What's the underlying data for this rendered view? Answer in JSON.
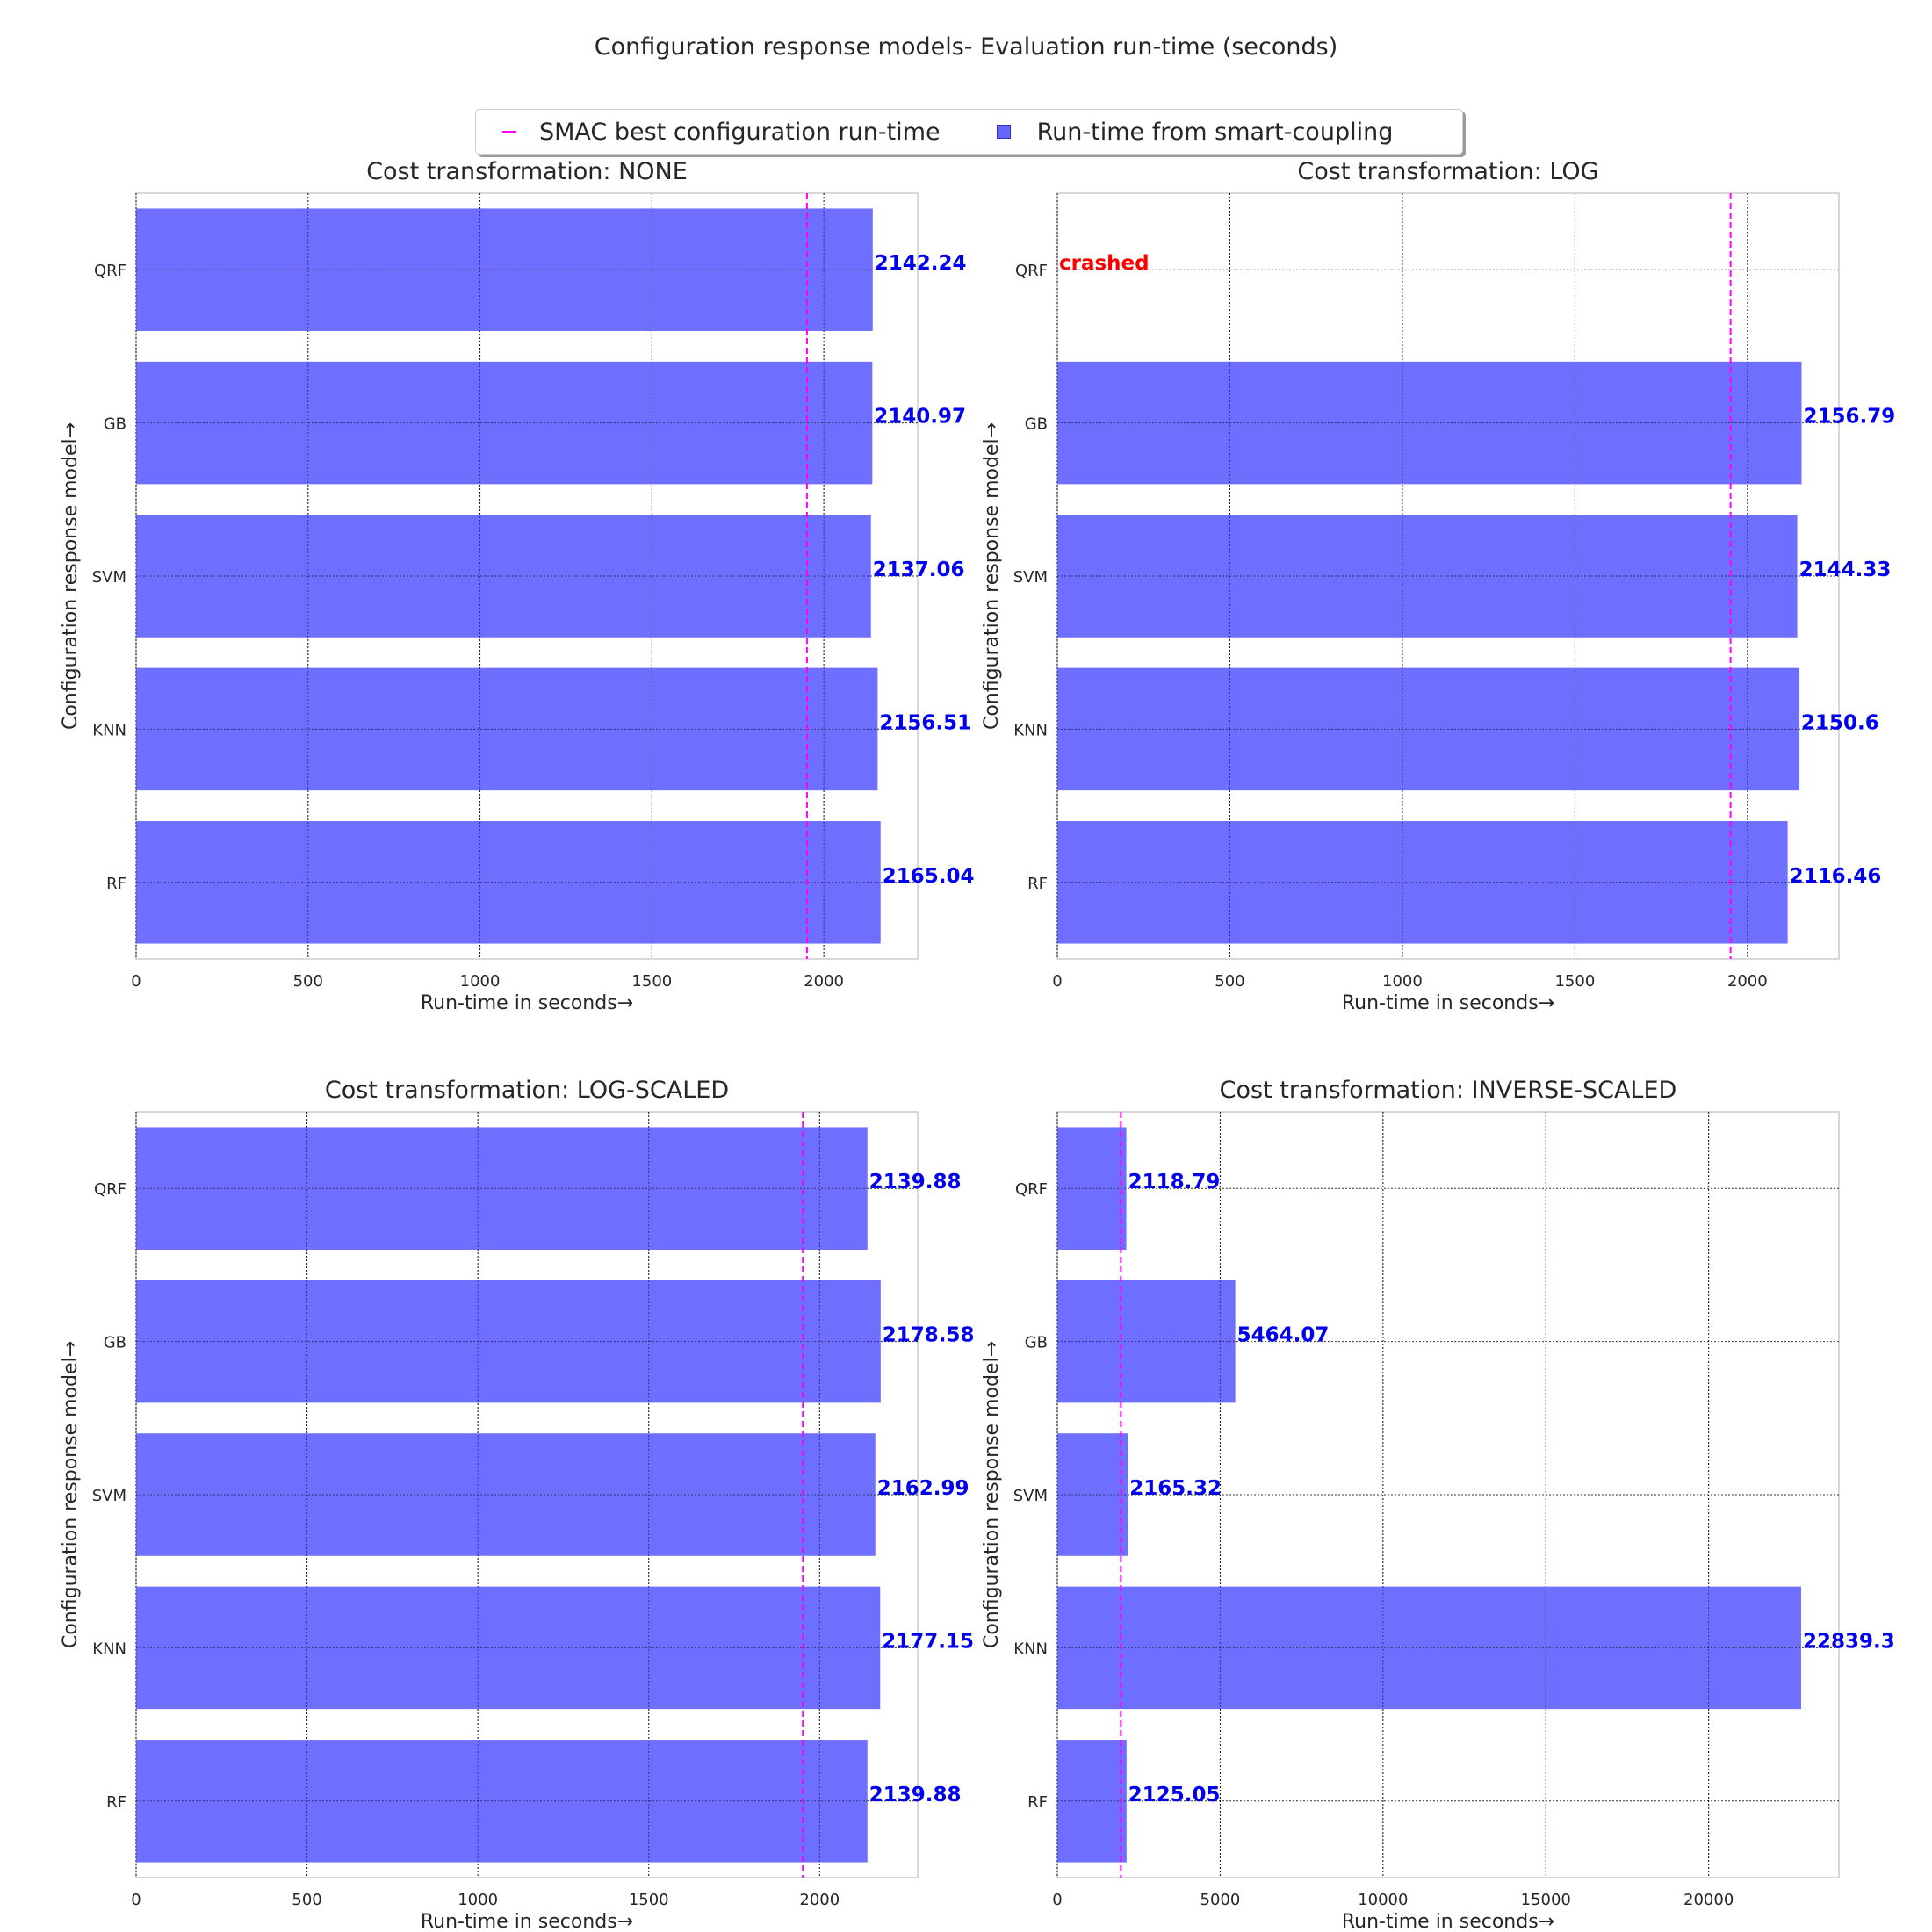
{
  "figure": {
    "title": "Configuration response models- Evaluation run-time (seconds)",
    "legend": {
      "line_label": "SMAC best configuration run-time",
      "bar_label": "Run-time from smart-coupling",
      "line_color": "#ff00ff",
      "bar_color": "#6666ff"
    }
  },
  "chart_data": [
    {
      "type": "bar",
      "orientation": "horizontal",
      "title": "Cost transformation: NONE",
      "xlabel": "Run-time in seconds→",
      "ylabel": "Configuration response model→",
      "categories": [
        "QRF",
        "GB",
        "SVM",
        "KNN",
        "RF"
      ],
      "values": [
        2142.24,
        2140.97,
        2137.06,
        2156.51,
        2165.04
      ],
      "labels": [
        "2142.24",
        "2140.97",
        "2137.06",
        "2156.51",
        "2165.04"
      ],
      "xticks": [
        0,
        500,
        1000,
        1500,
        2000
      ],
      "xlim": [
        0,
        2273
      ],
      "reference_line": 1951,
      "grid": true
    },
    {
      "type": "bar",
      "orientation": "horizontal",
      "title": "Cost transformation: LOG",
      "xlabel": "Run-time in seconds→",
      "ylabel": "Configuration response model→",
      "categories": [
        "QRF",
        "GB",
        "SVM",
        "KNN",
        "RF"
      ],
      "values": [
        null,
        2156.79,
        2144.33,
        2150.6,
        2116.46
      ],
      "labels": [
        "crashed",
        "2156.79",
        "2144.33",
        "2150.6",
        "2116.46"
      ],
      "crashed_label_color": "#ff0000",
      "xticks": [
        0,
        500,
        1000,
        1500,
        2000
      ],
      "xlim": [
        0,
        2265
      ],
      "reference_line": 1951,
      "grid": true
    },
    {
      "type": "bar",
      "orientation": "horizontal",
      "title": "Cost transformation: LOG-SCALED",
      "xlabel": "Run-time in seconds→",
      "ylabel": "Configuration response model→",
      "categories": [
        "QRF",
        "GB",
        "SVM",
        "KNN",
        "RF"
      ],
      "values": [
        2139.88,
        2178.58,
        2162.99,
        2177.15,
        2139.88
      ],
      "labels": [
        "2139.88",
        "2178.58",
        "2162.99",
        "2177.15",
        "2139.88"
      ],
      "xticks": [
        0,
        500,
        1000,
        1500,
        2000
      ],
      "xlim": [
        0,
        2287
      ],
      "reference_line": 1951,
      "grid": true
    },
    {
      "type": "bar",
      "orientation": "horizontal",
      "title": "Cost transformation: INVERSE-SCALED",
      "xlabel": "Run-time in seconds→",
      "ylabel": "Configuration response model→",
      "categories": [
        "QRF",
        "GB",
        "SVM",
        "KNN",
        "RF"
      ],
      "values": [
        2118.79,
        5464.07,
        2165.32,
        22839.3,
        2125.05
      ],
      "labels": [
        "2118.79",
        "5464.07",
        "2165.32",
        "22839.3",
        "2125.05"
      ],
      "xticks": [
        0,
        5000,
        10000,
        15000,
        20000
      ],
      "xlim": [
        0,
        24000
      ],
      "reference_line": 1951,
      "grid": true
    }
  ]
}
